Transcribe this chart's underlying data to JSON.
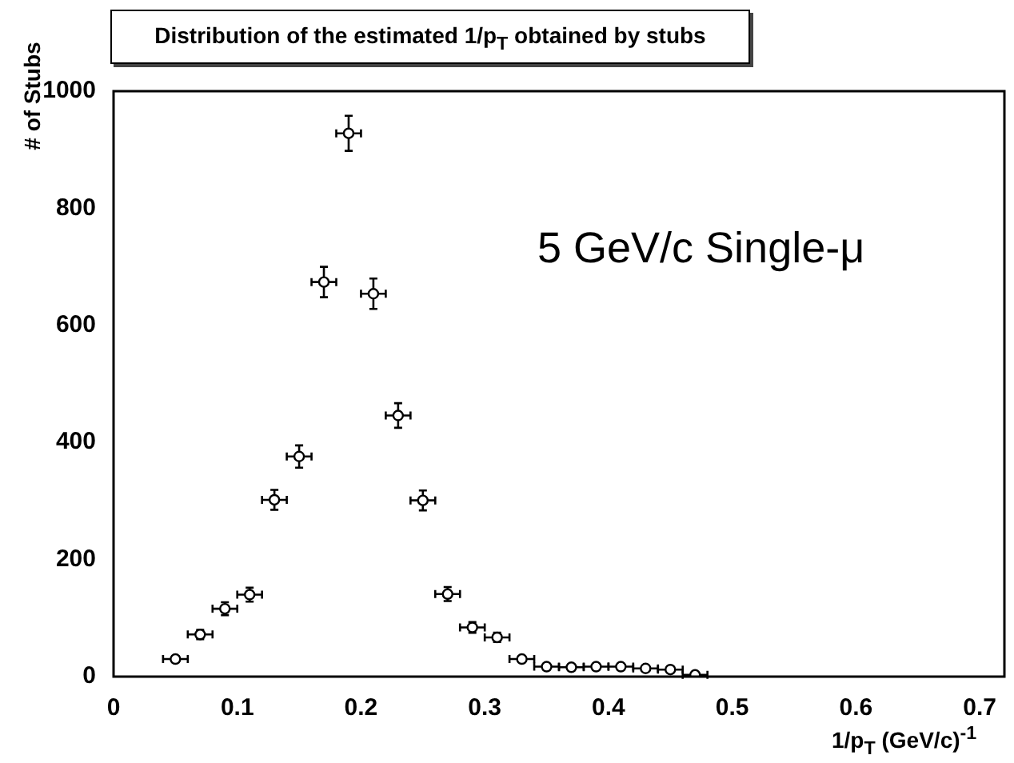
{
  "chart_data": {
    "type": "scatter",
    "title": "Distribution of the estimated 1/p$_{T}$ obtained by stubs",
    "xlabel": "1/p$_{T}$ (GeV/c)$^{-1}$",
    "ylabel": "# of Stubs",
    "annotations": [
      "5 GeV/c Single-μ"
    ],
    "x": [
      0.05,
      0.07,
      0.09,
      0.11,
      0.13,
      0.15,
      0.17,
      0.19,
      0.21,
      0.23,
      0.25,
      0.27,
      0.29,
      0.31,
      0.33,
      0.35,
      0.37,
      0.39,
      0.41,
      0.43,
      0.45,
      0.47
    ],
    "series": [
      {
        "color": "#000000",
        "values": [
          30,
          72,
          116,
          140,
          302,
          376,
          674,
          928,
          654,
          446,
          301,
          141,
          84,
          67,
          30,
          17,
          16,
          17,
          17,
          14,
          12,
          3
        ],
        "errors": [
          5,
          8,
          11,
          12,
          17,
          19,
          26,
          30,
          26,
          21,
          17,
          12,
          9,
          8,
          5,
          4,
          4,
          4,
          4,
          4,
          3,
          2
        ],
        "xerrors": [
          0.01,
          0.01,
          0.01,
          0.01,
          0.01,
          0.01,
          0.01,
          0.01,
          0.01,
          0.01,
          0.01,
          0.01,
          0.01,
          0.01,
          0.01,
          0.01,
          0.01,
          0.01,
          0.01,
          0.01,
          0.01,
          0.01
        ]
      }
    ],
    "xlim": [
      0,
      0.72
    ],
    "xticks": [
      0,
      0.1,
      0.2,
      0.3,
      0.4,
      0.5,
      0.6,
      0.7
    ],
    "ylim": [
      0,
      1000
    ],
    "yticks": [
      0,
      200,
      400,
      600,
      800,
      1000
    ],
    "grid": false,
    "legend": false,
    "marker": "circle"
  }
}
